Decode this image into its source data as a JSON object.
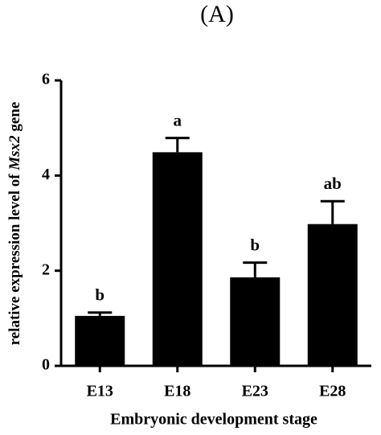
{
  "chart_data": {
    "type": "bar",
    "title": "(A)",
    "ylabel": [
      "relative expression level of ",
      "Msx2",
      " gene"
    ],
    "xlabel": "Embryonic development stage",
    "categories": [
      "E13",
      "E18",
      "E23",
      "E28"
    ],
    "values": [
      1.05,
      4.49,
      1.86,
      2.98
    ],
    "errors": [
      0.07,
      0.3,
      0.31,
      0.48
    ],
    "annotations": [
      "b",
      "a",
      "b",
      "ab"
    ],
    "color": "#000000",
    "ylim": [
      0,
      6
    ],
    "yticks": [
      0,
      2,
      4,
      6
    ]
  }
}
